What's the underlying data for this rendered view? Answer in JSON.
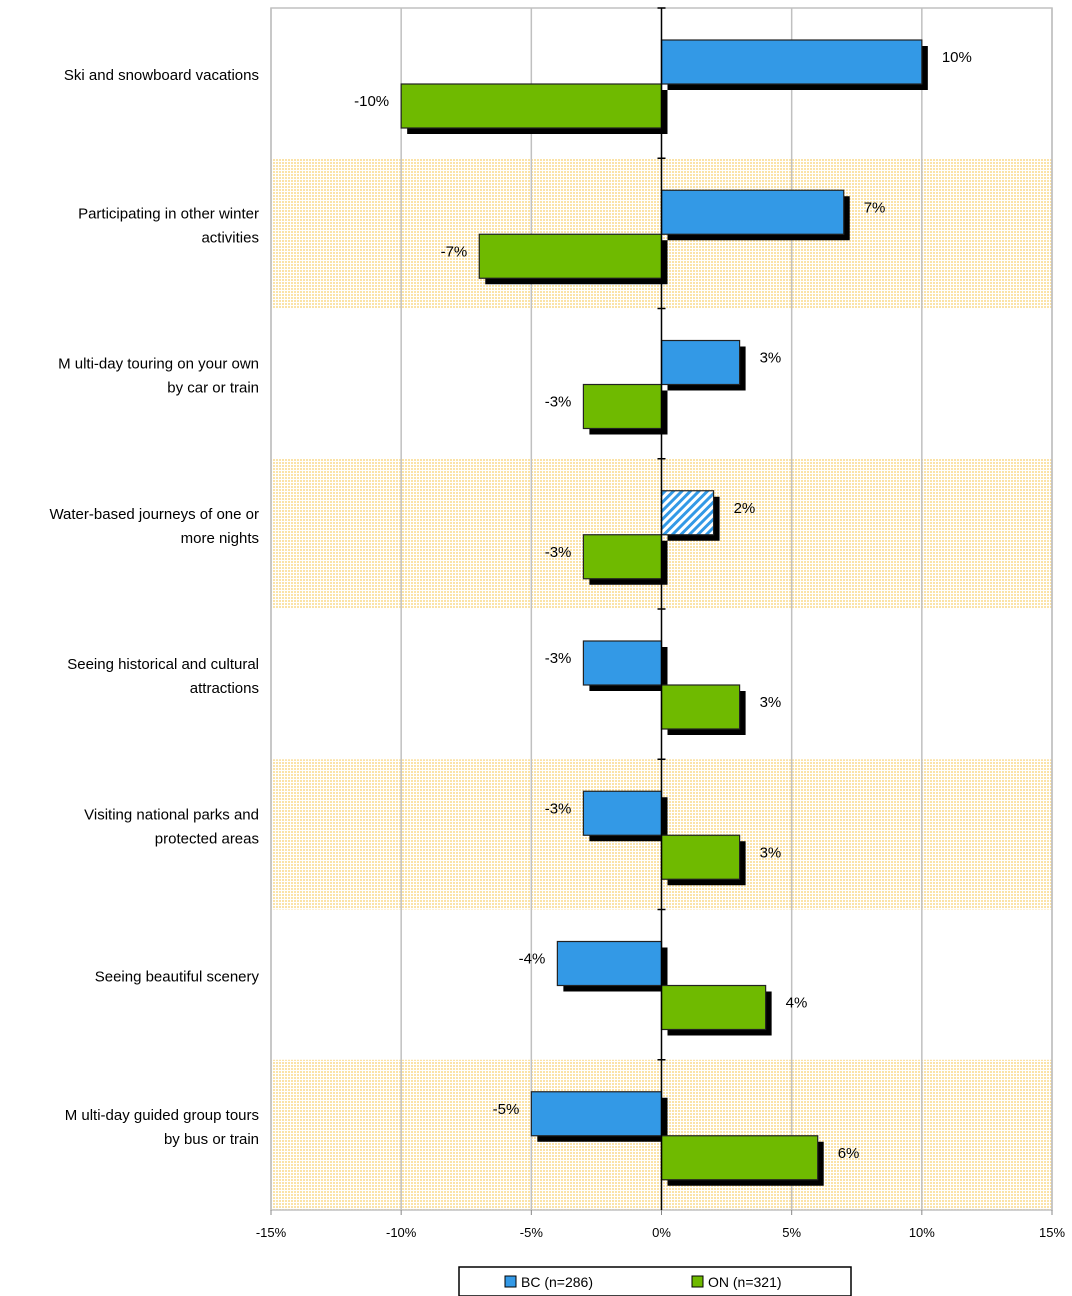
{
  "chart_data": {
    "type": "bar",
    "orientation": "horizontal",
    "categories": [
      [
        "Ski and snowboard vacations"
      ],
      [
        "Participating in other winter",
        "activities"
      ],
      [
        "M ulti-day touring on your own",
        "by car or train"
      ],
      [
        "Water-based journeys of one or",
        "more nights"
      ],
      [
        "Seeing historical and cultural",
        "attractions"
      ],
      [
        "Visiting national parks and",
        "protected areas"
      ],
      [
        "Seeing beautiful scenery"
      ],
      [
        "M ulti-day guided group tours",
        "by bus or train"
      ]
    ],
    "series": [
      {
        "name": "BC (n=286)",
        "color": "#3399e6",
        "values": [
          10,
          7,
          3,
          2,
          -3,
          -3,
          -4,
          -5
        ],
        "labels": [
          "10%",
          "7%",
          "3%",
          "2%",
          "-3%",
          "-3%",
          "-4%",
          "-5%"
        ],
        "hatched_index": 3
      },
      {
        "name": "ON (n=321)",
        "color": "#6fba00",
        "values": [
          -10,
          -7,
          -3,
          -3,
          3,
          3,
          4,
          6
        ],
        "labels": [
          "-10%",
          "-7%",
          "-3%",
          "-3%",
          "3%",
          "3%",
          "4%",
          "6%"
        ]
      }
    ],
    "xlim": [
      -15,
      15
    ],
    "x_ticks": [
      -15,
      -10,
      -5,
      0,
      5,
      10,
      15
    ],
    "x_tick_labels": [
      "-15%",
      "-10%",
      "-5%",
      "0%",
      "5%",
      "10%",
      "15%"
    ],
    "grid": true,
    "banded_rows": [
      1,
      3,
      5,
      7
    ],
    "band_color": "#fbe3a8",
    "legend_position": "bottom-center",
    "title": "",
    "xlabel": "",
    "ylabel": ""
  }
}
